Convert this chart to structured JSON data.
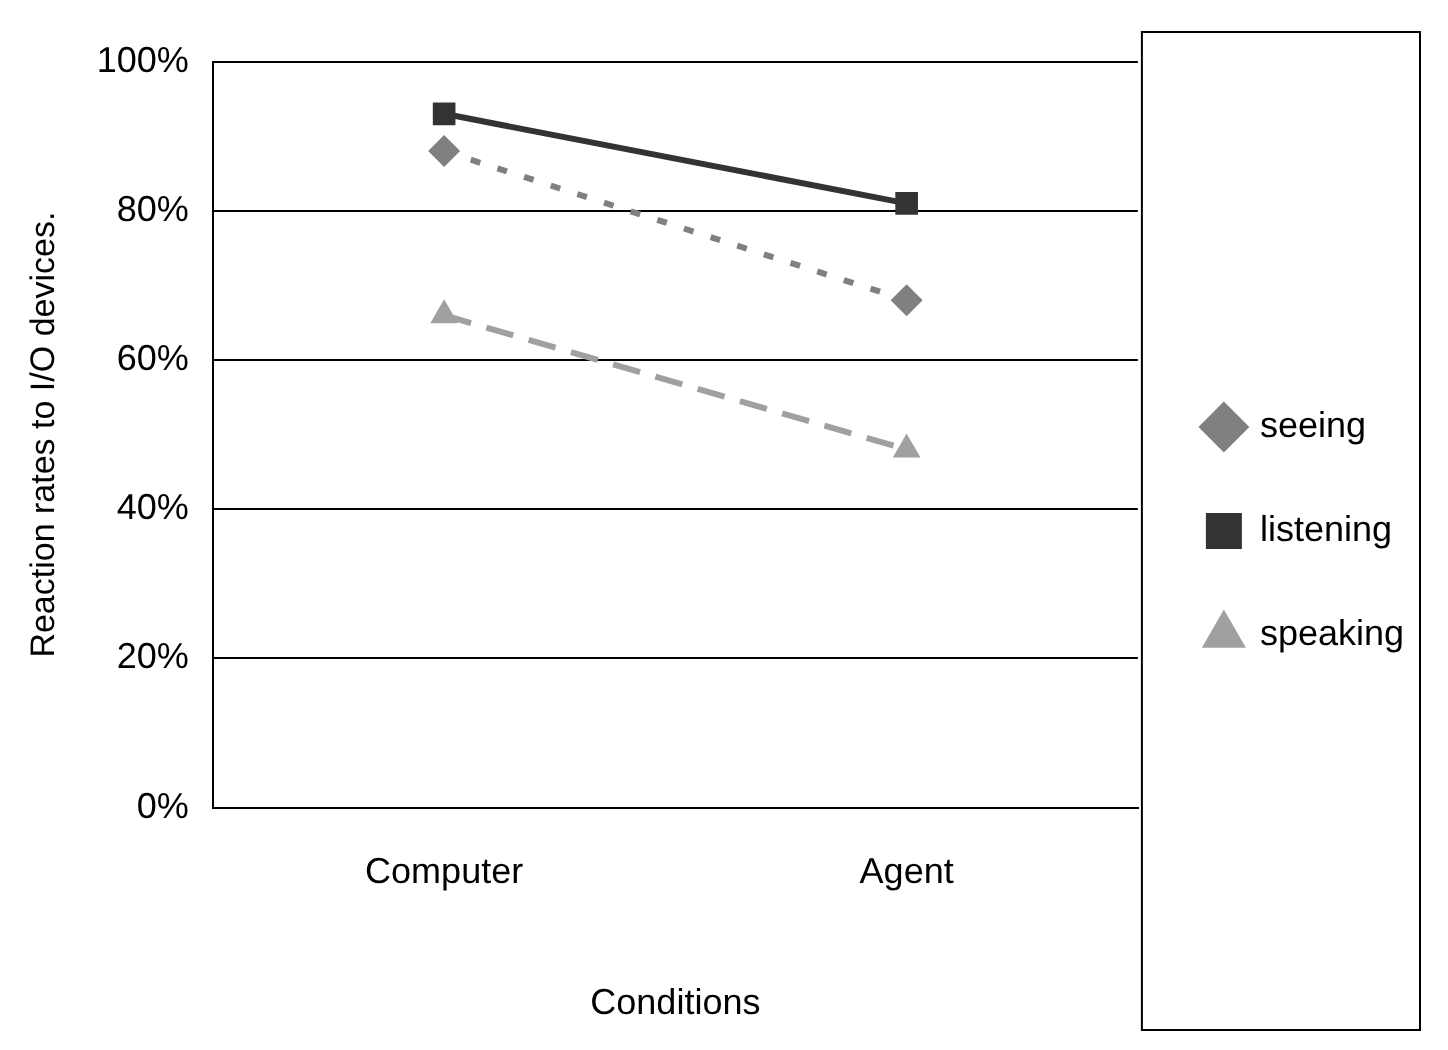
{
  "chart_data": {
    "type": "line",
    "xlabel": "Conditions",
    "ylabel": "Reaction rates to I/O devices.",
    "categories": [
      "Computer",
      "Agent"
    ],
    "series": [
      {
        "name": "seeing",
        "color": "#808080",
        "values": [
          88,
          68
        ],
        "marker": "diamond",
        "line_style": "dotted"
      },
      {
        "name": "listening",
        "color": "#333333",
        "values": [
          93,
          81
        ],
        "marker": "square",
        "line_style": "solid"
      },
      {
        "name": "speaking",
        "color": "#a0a0a0",
        "values": [
          66,
          48
        ],
        "marker": "triangle",
        "line_style": "dashed"
      }
    ],
    "ylim": [
      0,
      100
    ],
    "yticks": [
      {
        "value": 0,
        "label": "0%"
      },
      {
        "value": 20,
        "label": "20%"
      },
      {
        "value": 40,
        "label": "40%"
      },
      {
        "value": 60,
        "label": "60%"
      },
      {
        "value": 80,
        "label": "80%"
      },
      {
        "value": 100,
        "label": "100%"
      }
    ],
    "grid": "y",
    "legend": "right"
  }
}
